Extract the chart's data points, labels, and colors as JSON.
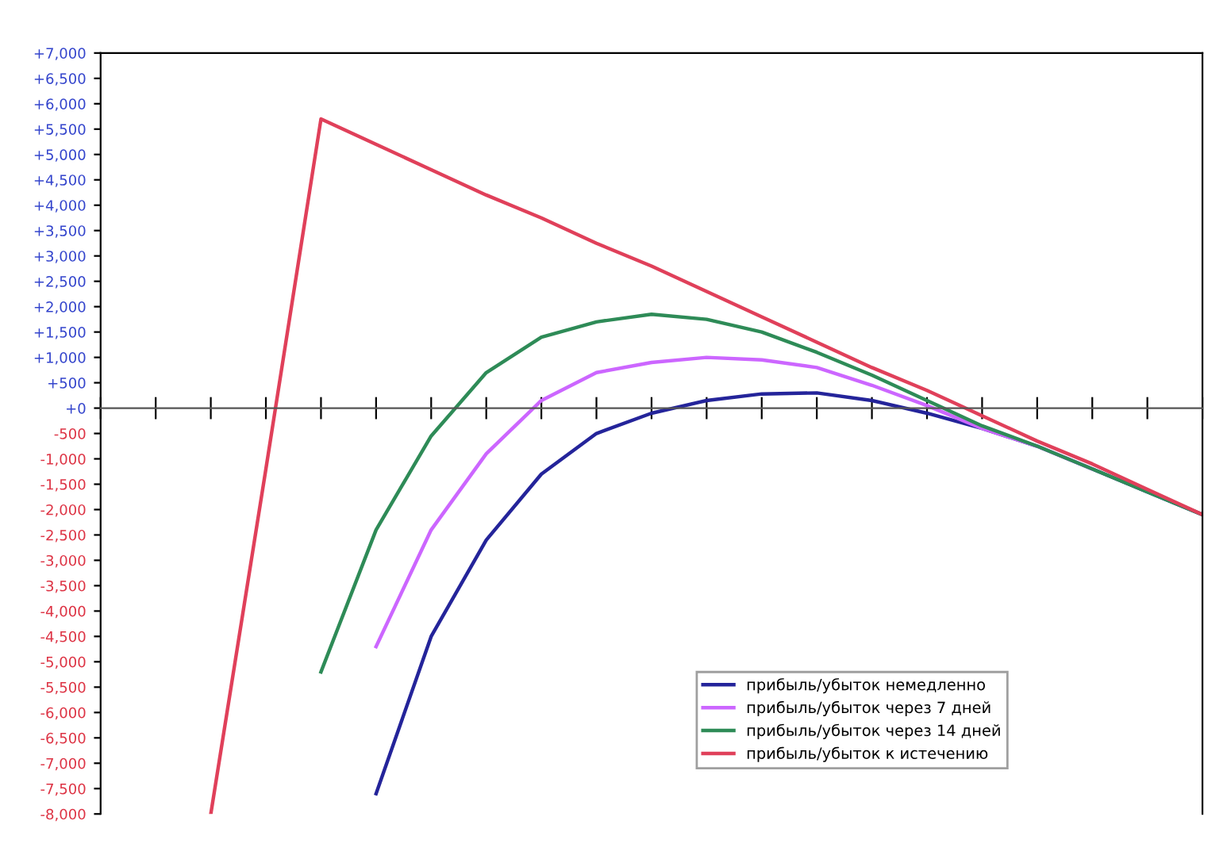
{
  "chart_data": {
    "type": "line",
    "categories": [
      null,
      null,
      null,
      null,
      null,
      null,
      null,
      null,
      null,
      null,
      null,
      null,
      null,
      null,
      null,
      null,
      null,
      null,
      null,
      null,
      null
    ],
    "ylim": [
      -8000,
      7000
    ],
    "yticks": [
      {
        "value": 7000,
        "label": "+7,000"
      },
      {
        "value": 6500,
        "label": "+6,500"
      },
      {
        "value": 6000,
        "label": "+6,000"
      },
      {
        "value": 5500,
        "label": "+5,500"
      },
      {
        "value": 5000,
        "label": "+5,000"
      },
      {
        "value": 4500,
        "label": "+4,500"
      },
      {
        "value": 4000,
        "label": "+4,000"
      },
      {
        "value": 3500,
        "label": "+3,500"
      },
      {
        "value": 3000,
        "label": "+3,000"
      },
      {
        "value": 2500,
        "label": "+2,500"
      },
      {
        "value": 2000,
        "label": "+2,000"
      },
      {
        "value": 1500,
        "label": "+1,500"
      },
      {
        "value": 1000,
        "label": "+1,000"
      },
      {
        "value": 500,
        "label": "+500"
      },
      {
        "value": 0,
        "label": "+0"
      },
      {
        "value": -500,
        "label": "-500"
      },
      {
        "value": -1000,
        "label": "-1,000"
      },
      {
        "value": -1500,
        "label": "-1,500"
      },
      {
        "value": -2000,
        "label": "-2,000"
      },
      {
        "value": -2500,
        "label": "-2,500"
      },
      {
        "value": -3000,
        "label": "-3,000"
      },
      {
        "value": -3500,
        "label": "-3,500"
      },
      {
        "value": -4000,
        "label": "-4,000"
      },
      {
        "value": -4500,
        "label": "-4,500"
      },
      {
        "value": -5000,
        "label": "-5,000"
      },
      {
        "value": -5500,
        "label": "-5,500"
      },
      {
        "value": -6000,
        "label": "-6,000"
      },
      {
        "value": -6500,
        "label": "-6,500"
      },
      {
        "value": -7000,
        "label": "-7,000"
      },
      {
        "value": -7500,
        "label": "-7,500"
      },
      {
        "value": -8000,
        "label": "-8,000"
      }
    ],
    "tick_labels": "y",
    "legend": "bottom right",
    "series": [
      {
        "name": "прибыль/убыток немедленно",
        "color": "#24249a",
        "values": [
          null,
          null,
          null,
          null,
          null,
          -7600,
          -4500,
          -2600,
          -1300,
          -500,
          -100,
          150,
          280,
          300,
          150,
          -100,
          -400,
          -750,
          -1200,
          -1650,
          -2100
        ]
      },
      {
        "name": "прибыль/убыток через 7 дней",
        "color": "#cc66ff",
        "values": [
          null,
          null,
          null,
          null,
          null,
          -4700,
          -2400,
          -900,
          150,
          700,
          900,
          1000,
          950,
          800,
          450,
          50,
          -400,
          -750,
          -1200,
          null,
          null
        ]
      },
      {
        "name": "прибыль/убыток через 14 дней",
        "color": "#2e8b57",
        "values": [
          null,
          null,
          null,
          null,
          -5200,
          -2400,
          -550,
          700,
          1400,
          1700,
          1850,
          1750,
          1500,
          1100,
          650,
          150,
          -350,
          -750,
          -1200,
          -1650,
          -2100
        ]
      },
      {
        "name": "прибыль/убыток к истечению",
        "color": "#e0405a",
        "values": [
          null,
          null,
          -8000,
          -1200,
          5700,
          5200,
          4700,
          4200,
          3750,
          3250,
          2800,
          2300,
          1800,
          1300,
          800,
          350,
          -150,
          -650,
          -1100,
          -1600,
          -2100
        ]
      }
    ]
  }
}
